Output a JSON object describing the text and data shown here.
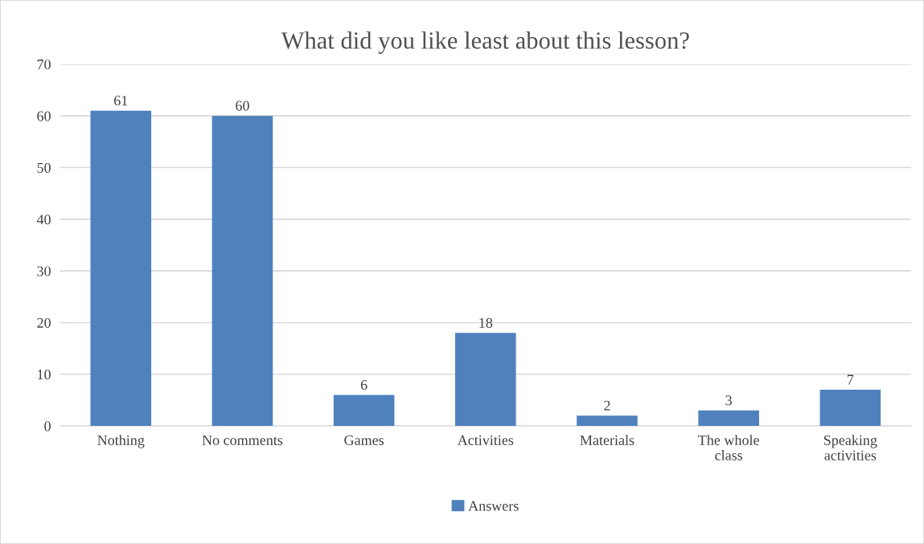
{
  "chart_data": {
    "type": "bar",
    "title": "What did you like least about this lesson?",
    "categories": [
      "Nothing",
      "No comments",
      "Games",
      "Activities",
      "Materials",
      "The whole\nclass",
      "Speaking\nactivities"
    ],
    "series": [
      {
        "name": "Answers",
        "color": "#4f81bd",
        "values": [
          61,
          60,
          6,
          18,
          2,
          3,
          7
        ]
      }
    ],
    "ylim": [
      0,
      70
    ],
    "yticks": [
      0,
      10,
      20,
      30,
      40,
      50,
      60,
      70
    ],
    "grid": "y",
    "legend": "bottom",
    "data_labels": true
  }
}
